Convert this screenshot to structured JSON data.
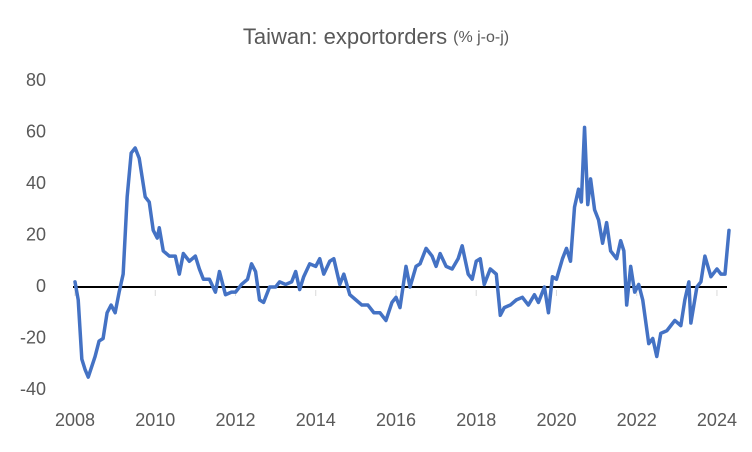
{
  "chart_data": {
    "type": "line",
    "title": "Taiwan: exportorders",
    "subtitle": "(% j-o-j)",
    "xlim": [
      2008,
      2024.4
    ],
    "xticks": [
      2008,
      2010,
      2012,
      2014,
      2016,
      2018,
      2020,
      2022,
      2024
    ],
    "ylim": [
      -40,
      80
    ],
    "yticks": [
      -40,
      -20,
      0,
      20,
      40,
      60,
      80
    ],
    "grid": false,
    "zero_line": true,
    "series": [
      {
        "name": "exportorders",
        "color": "#4472c4",
        "x": [
          2008.0,
          2008.08,
          2008.17,
          2008.25,
          2008.33,
          2008.5,
          2008.6,
          2008.7,
          2008.8,
          2008.9,
          2009.0,
          2009.1,
          2009.2,
          2009.3,
          2009.4,
          2009.5,
          2009.6,
          2009.75,
          2009.85,
          2009.95,
          2010.05,
          2010.1,
          2010.2,
          2010.35,
          2010.5,
          2010.6,
          2010.7,
          2010.85,
          2011.0,
          2011.1,
          2011.2,
          2011.35,
          2011.5,
          2011.6,
          2011.75,
          2011.9,
          2012.0,
          2012.15,
          2012.3,
          2012.4,
          2012.5,
          2012.6,
          2012.7,
          2012.85,
          2013.0,
          2013.1,
          2013.25,
          2013.4,
          2013.5,
          2013.6,
          2013.7,
          2013.85,
          2014.0,
          2014.1,
          2014.2,
          2014.35,
          2014.45,
          2014.6,
          2014.7,
          2014.85,
          2015.0,
          2015.15,
          2015.3,
          2015.45,
          2015.6,
          2015.75,
          2015.9,
          2016.0,
          2016.1,
          2016.25,
          2016.35,
          2016.5,
          2016.6,
          2016.75,
          2016.9,
          2017.0,
          2017.1,
          2017.25,
          2017.4,
          2017.55,
          2017.65,
          2017.8,
          2017.9,
          2018.0,
          2018.1,
          2018.2,
          2018.35,
          2018.5,
          2018.6,
          2018.7,
          2018.85,
          2019.0,
          2019.15,
          2019.3,
          2019.45,
          2019.55,
          2019.7,
          2019.8,
          2019.9,
          2020.0,
          2020.15,
          2020.25,
          2020.35,
          2020.45,
          2020.55,
          2020.62,
          2020.7,
          2020.78,
          2020.85,
          2020.95,
          2021.05,
          2021.15,
          2021.25,
          2021.35,
          2021.5,
          2021.6,
          2021.68,
          2021.75,
          2021.85,
          2021.95,
          2022.05,
          2022.15,
          2022.3,
          2022.4,
          2022.5,
          2022.6,
          2022.75,
          2022.85,
          2022.95,
          2023.1,
          2023.2,
          2023.3,
          2023.35,
          2023.5,
          2023.6,
          2023.7,
          2023.85,
          2024.0,
          2024.1,
          2024.2,
          2024.3
        ],
        "values": [
          2,
          -5,
          -28,
          -32,
          -35,
          -27,
          -21,
          -20,
          -10,
          -7,
          -10,
          -2,
          5,
          35,
          52,
          54,
          50,
          35,
          33,
          22,
          19,
          23,
          14,
          12,
          12,
          5,
          13,
          10,
          12,
          7,
          3,
          3,
          -2,
          6,
          -3,
          -2,
          -2,
          1,
          3,
          9,
          6,
          -5,
          -6,
          0,
          0,
          2,
          1,
          2,
          6,
          -1,
          4,
          9,
          8,
          11,
          5,
          10,
          11,
          1,
          5,
          -3,
          -5,
          -7,
          -7,
          -10,
          -10,
          -13,
          -6,
          -4,
          -8,
          8,
          0,
          8,
          9,
          15,
          12,
          8,
          13,
          8,
          7,
          11,
          16,
          5,
          3,
          10,
          11,
          1,
          7,
          5,
          -11,
          -8,
          -7,
          -5,
          -4,
          -7,
          -3,
          -6,
          0,
          -10,
          4,
          3,
          11,
          15,
          10,
          31,
          38,
          33,
          62,
          32,
          42,
          30,
          26,
          17,
          25,
          14,
          11,
          18,
          14,
          -7,
          8,
          -2,
          1,
          -5,
          -22,
          -20,
          -27,
          -18,
          -17,
          -15,
          -13,
          -15,
          -5,
          2,
          -14,
          0,
          2,
          12,
          4,
          7,
          5,
          5,
          22
        ]
      }
    ]
  }
}
